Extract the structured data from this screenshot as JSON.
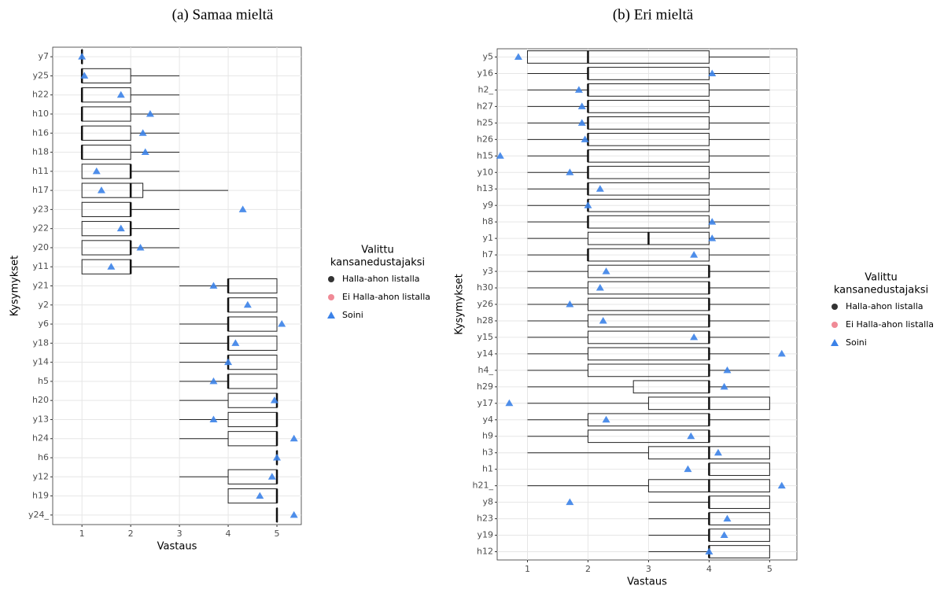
{
  "chart_data": [
    {
      "type": "boxplot",
      "title": "(a) Samaa mieltä",
      "x_label": "Vastaus",
      "y_label": "Kysymykset",
      "categories": [
        "y7",
        "y25",
        "h22",
        "h10",
        "h16",
        "h18",
        "h11",
        "h17",
        "y23",
        "y22",
        "y20",
        "y11",
        "y21",
        "y2",
        "y6",
        "y18",
        "y14",
        "h5",
        "h20",
        "y13",
        "h24",
        "h6",
        "y12",
        "h19",
        "y24_"
      ],
      "boxes": {
        "min": [
          1,
          1,
          1,
          1,
          1,
          1,
          1,
          1,
          1,
          1,
          1,
          1,
          3,
          4,
          3,
          3,
          3,
          3,
          3,
          3,
          3,
          5,
          3,
          4,
          5
        ],
        "q1": [
          1,
          1,
          1,
          1,
          1,
          1,
          1,
          1,
          1,
          1,
          1,
          1,
          4,
          4,
          4,
          4,
          4,
          4,
          4,
          4,
          4,
          5,
          4,
          4,
          5
        ],
        "median": [
          1,
          1,
          1,
          1,
          1,
          1,
          2,
          2,
          2,
          2,
          2,
          2,
          4,
          4,
          4,
          4,
          4,
          4,
          5,
          5,
          5,
          5,
          5,
          5,
          5
        ],
        "q3": [
          1,
          2,
          2,
          2,
          2,
          2,
          2,
          2.25,
          2,
          2,
          2,
          2,
          5,
          5,
          5,
          5,
          5,
          5,
          5,
          5,
          5,
          5,
          5,
          5,
          5
        ],
        "max": [
          1,
          3,
          3,
          3,
          3,
          3,
          3,
          4,
          3,
          3,
          3,
          3,
          5,
          5,
          5,
          5,
          5,
          5,
          5,
          5,
          5,
          5,
          5,
          5,
          5
        ]
      },
      "soini": [
        1.0,
        1.05,
        1.8,
        2.4,
        2.25,
        2.3,
        1.3,
        1.4,
        4.3,
        1.8,
        2.2,
        1.6,
        3.7,
        4.4,
        5.1,
        4.15,
        4.0,
        3.7,
        4.95,
        3.7,
        5.35,
        5.0,
        4.9,
        4.65,
        5.35
      ],
      "xlim": [
        0.4,
        5.5
      ],
      "xticks": [
        1,
        2,
        3,
        4,
        5
      ],
      "grid": true,
      "legend": {
        "title": [
          "Valittu",
          "kansanedustajaksi"
        ],
        "items": [
          {
            "name": "Halla-ahon listalla",
            "color": "#333333",
            "shape": "circle"
          },
          {
            "name": "Ei Halla-ahon listalla",
            "color": "#f08a96",
            "shape": "circle"
          },
          {
            "name": "Soini",
            "color": "#3b82e8",
            "shape": "triangle"
          }
        ]
      }
    },
    {
      "type": "boxplot",
      "title": "(b) Eri mieltä",
      "x_label": "Vastaus",
      "y_label": "Kysymykset",
      "categories": [
        "y5",
        "y16",
        "h2_",
        "h27",
        "h25",
        "h26",
        "h15",
        "y10",
        "h13",
        "y9",
        "h8",
        "y1",
        "h7",
        "y3",
        "h30",
        "y26",
        "h28",
        "y15",
        "y14",
        "h4_",
        "h29",
        "y17",
        "y4",
        "h9",
        "h3",
        "h1",
        "h21_",
        "y8",
        "h23",
        "y19",
        "h12"
      ],
      "boxes": {
        "min": [
          1,
          1,
          1,
          1,
          1,
          1,
          1,
          1,
          1,
          1,
          1,
          1,
          1,
          1,
          1,
          1,
          1,
          1,
          1,
          1,
          1,
          1,
          1,
          1,
          1,
          4,
          1,
          3,
          3,
          3,
          3
        ],
        "q1": [
          1,
          2,
          2,
          2,
          2,
          2,
          2,
          2,
          2,
          2,
          2,
          2,
          2,
          2,
          2,
          2,
          2,
          2,
          2,
          2,
          2.75,
          3,
          2,
          2,
          3,
          4,
          3,
          4,
          4,
          4,
          4
        ],
        "median": [
          2,
          2,
          2,
          2,
          2,
          2,
          2,
          2,
          2,
          2,
          2,
          3,
          2,
          4,
          4,
          4,
          4,
          4,
          4,
          4,
          4,
          4,
          4,
          4,
          4,
          4,
          4,
          4,
          4,
          4,
          4
        ],
        "q3": [
          4,
          4,
          4,
          4,
          4,
          4,
          4,
          4,
          4,
          4,
          4,
          4,
          4,
          4,
          4,
          4,
          4,
          4,
          4,
          4,
          4,
          5,
          4,
          4,
          5,
          5,
          5,
          5,
          5,
          5,
          5
        ],
        "max": [
          5,
          5,
          5,
          5,
          5,
          5,
          5,
          5,
          5,
          5,
          5,
          5,
          5,
          5,
          5,
          5,
          5,
          5,
          5,
          5,
          5,
          5,
          5,
          5,
          5,
          5,
          5,
          5,
          5,
          5,
          5
        ]
      },
      "soini": [
        0.85,
        4.05,
        1.85,
        1.9,
        1.9,
        1.95,
        0.55,
        1.7,
        2.2,
        2.0,
        4.05,
        4.05,
        3.75,
        2.3,
        2.2,
        1.7,
        2.25,
        3.75,
        5.2,
        4.3,
        4.25,
        0.7,
        2.3,
        3.7,
        4.15,
        3.65,
        5.2,
        1.7,
        4.3,
        4.25,
        4.0
      ],
      "xlim": [
        0.5,
        5.45
      ],
      "xticks": [
        1,
        2,
        3,
        4,
        5
      ],
      "grid": true,
      "legend": {
        "title": [
          "Valittu",
          "kansanedustajaksi"
        ],
        "items": [
          {
            "name": "Halla-ahon listalla",
            "color": "#333333",
            "shape": "circle"
          },
          {
            "name": "Ei Halla-ahon listalla",
            "color": "#f08a96",
            "shape": "circle"
          },
          {
            "name": "Soini",
            "color": "#3b82e8",
            "shape": "triangle"
          }
        ]
      }
    }
  ]
}
